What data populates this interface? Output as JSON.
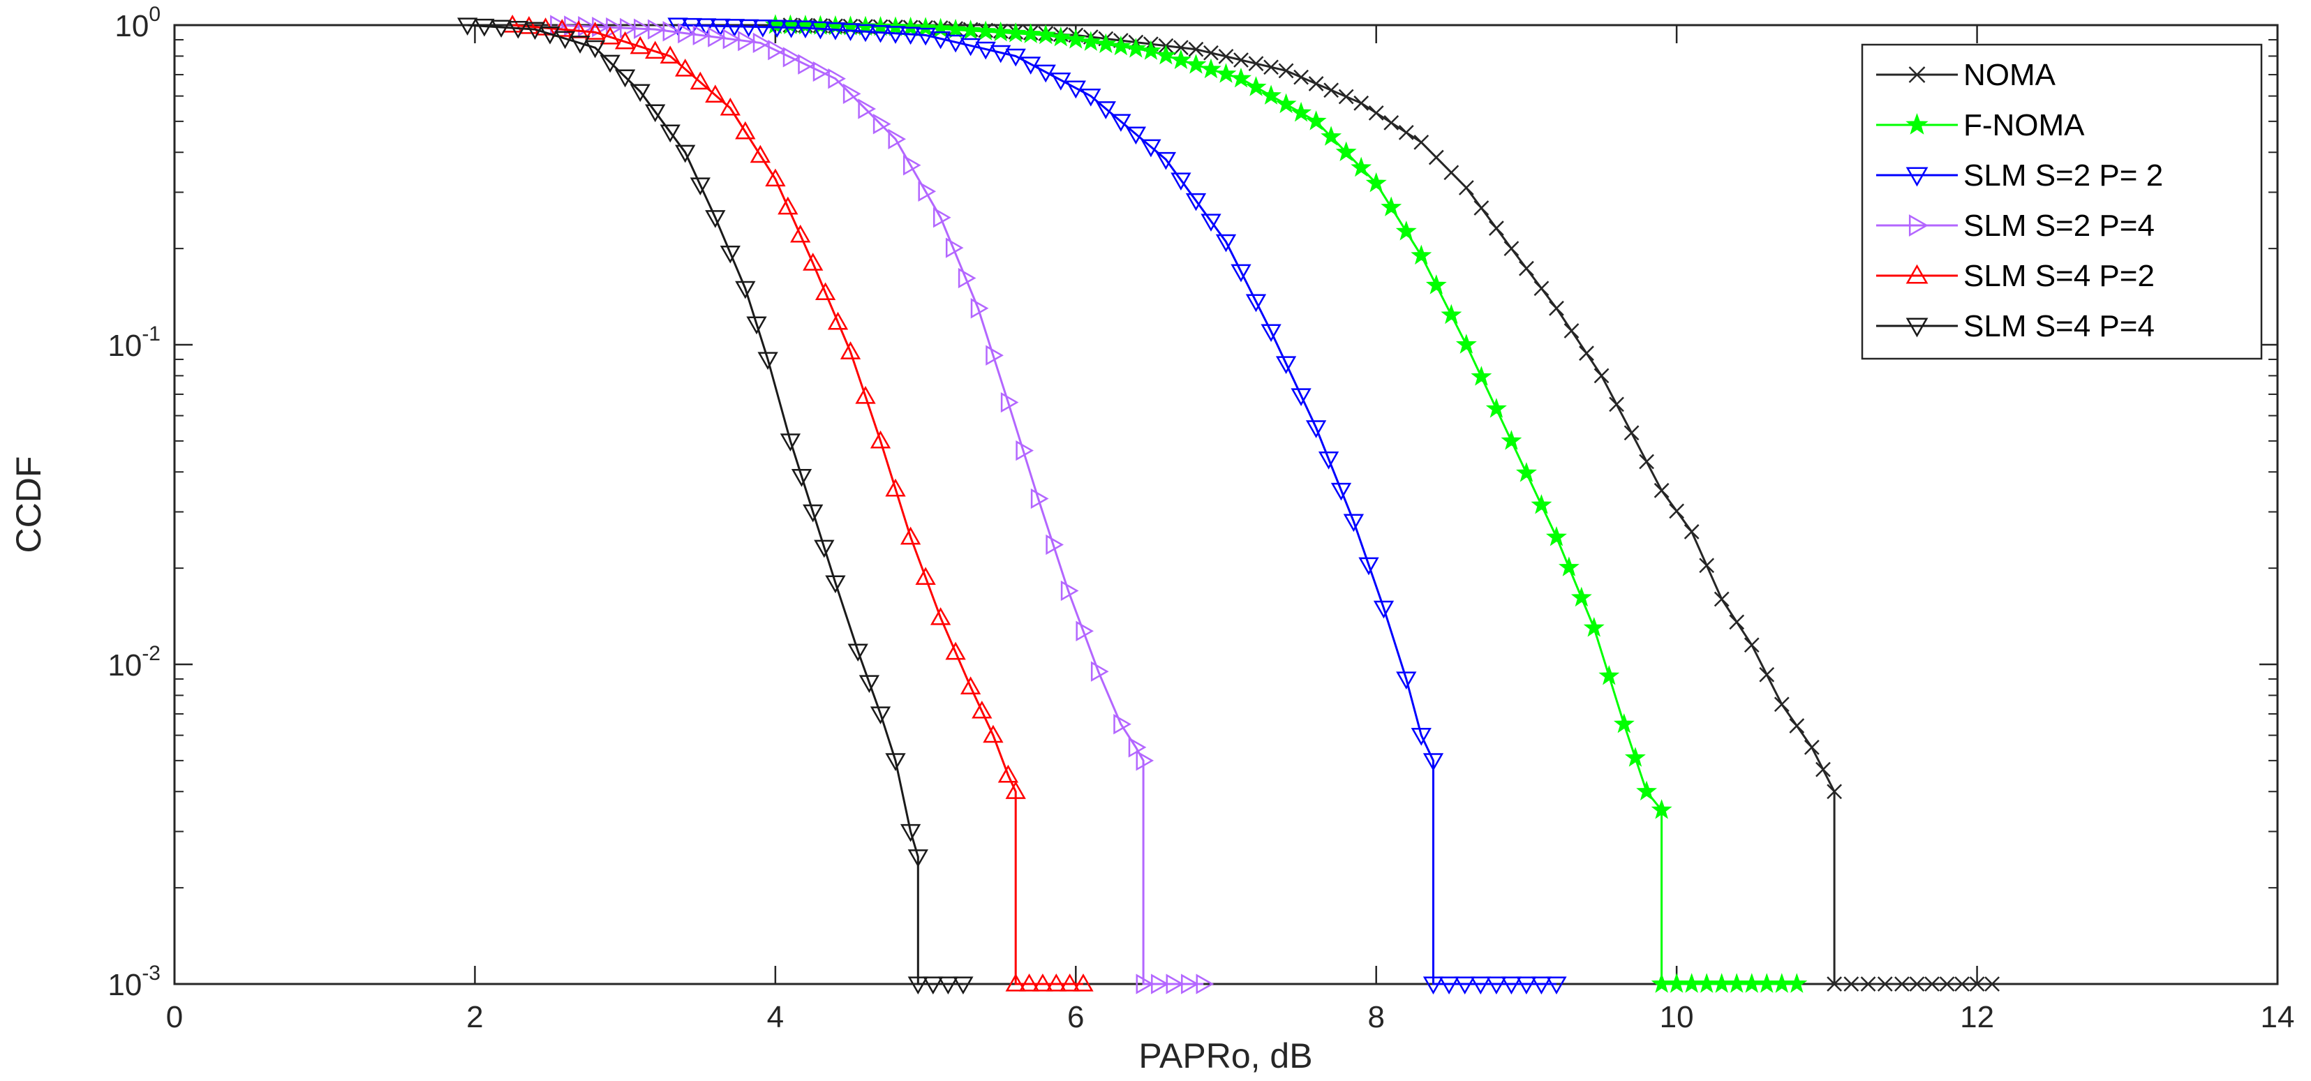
{
  "chart_data": {
    "type": "line",
    "title": "",
    "xlabel": "PAPRo, dB",
    "ylabel": "CCDF",
    "xlim": [
      0,
      14
    ],
    "ylim": [
      0.001,
      1
    ],
    "yscale": "log",
    "xticks": [
      0,
      2,
      4,
      6,
      8,
      10,
      12,
      14
    ],
    "xtick_labels": [
      "0",
      "2",
      "4",
      "6",
      "8",
      "10",
      "12",
      "14"
    ],
    "yticks": [
      1,
      0.1,
      0.01,
      0.001
    ],
    "ytick_labels": [
      {
        "base": "10",
        "exp": "0"
      },
      {
        "base": "10",
        "exp": "-1"
      },
      {
        "base": "10",
        "exp": "-2"
      },
      {
        "base": "10",
        "exp": "-3"
      }
    ],
    "grid": false,
    "legend_position": "top-right",
    "series": [
      {
        "name": "NOMA",
        "color": "#262626",
        "marker": "x",
        "x": [
          4.1,
          5.1,
          6.0,
          6.8,
          7.4,
          7.9,
          8.3,
          8.6,
          8.9,
          9.2,
          9.5,
          9.7,
          9.9,
          10.1,
          10.3,
          10.5,
          10.7,
          10.9,
          11.05,
          11.05,
          11.5,
          12.1
        ],
        "y": [
          1.0,
          0.98,
          0.93,
          0.84,
          0.72,
          0.57,
          0.43,
          0.31,
          0.2,
          0.13,
          0.08,
          0.053,
          0.035,
          0.026,
          0.016,
          0.0115,
          0.0075,
          0.0055,
          0.004,
          0.001,
          0.001,
          0.001
        ]
      },
      {
        "name": "F-NOMA",
        "color": "#00ff00",
        "marker": "star",
        "x": [
          4.0,
          5.0,
          5.8,
          6.5,
          7.1,
          7.6,
          8.0,
          8.3,
          8.6,
          8.9,
          9.2,
          9.45,
          9.65,
          9.8,
          9.9,
          9.9,
          10.4,
          10.8
        ],
        "y": [
          1.0,
          0.98,
          0.93,
          0.83,
          0.68,
          0.5,
          0.32,
          0.19,
          0.1,
          0.05,
          0.025,
          0.013,
          0.0065,
          0.004,
          0.0035,
          0.001,
          0.001,
          0.001
        ],
        "visible_markers": true
      },
      {
        "name": "SLM S=2 P= 2",
        "color": "#0000ff",
        "marker": "triangle-down",
        "x": [
          3.35,
          4.2,
          5.0,
          5.6,
          6.1,
          6.6,
          7.0,
          7.3,
          7.6,
          7.85,
          8.05,
          8.2,
          8.3,
          8.38,
          8.38,
          8.8,
          9.2
        ],
        "y": [
          1.0,
          0.98,
          0.93,
          0.8,
          0.6,
          0.38,
          0.21,
          0.11,
          0.055,
          0.028,
          0.015,
          0.009,
          0.006,
          0.005,
          0.001,
          0.001,
          0.001
        ]
      },
      {
        "name": "SLM S=2 P=4",
        "color": "#b366ff",
        "marker": "triangle-right",
        "x": [
          2.55,
          3.2,
          3.9,
          4.4,
          4.8,
          5.1,
          5.35,
          5.55,
          5.75,
          5.95,
          6.15,
          6.3,
          6.4,
          6.45,
          6.45,
          6.85
        ],
        "y": [
          1.0,
          0.97,
          0.88,
          0.68,
          0.44,
          0.25,
          0.13,
          0.066,
          0.033,
          0.017,
          0.0095,
          0.0065,
          0.0055,
          0.005,
          0.001,
          0.001
        ],
        "visible_markers": true
      },
      {
        "name": "SLM S=4 P=2",
        "color": "#ff0000",
        "marker": "triangle-up",
        "x": [
          2.25,
          2.8,
          3.3,
          3.7,
          4.0,
          4.25,
          4.5,
          4.7,
          4.9,
          5.1,
          5.3,
          5.45,
          5.55,
          5.6,
          5.6,
          6.05
        ],
        "y": [
          1.0,
          0.95,
          0.8,
          0.55,
          0.33,
          0.18,
          0.095,
          0.05,
          0.025,
          0.014,
          0.0085,
          0.006,
          0.0045,
          0.004,
          0.001,
          0.001
        ]
      },
      {
        "name": "SLM S=4 P=4",
        "color": "#1a1a1a",
        "marker": "triangle-down",
        "x": [
          1.95,
          2.4,
          2.8,
          3.1,
          3.4,
          3.6,
          3.8,
          3.95,
          4.1,
          4.25,
          4.4,
          4.55,
          4.7,
          4.8,
          4.9,
          4.95,
          4.95,
          5.25
        ],
        "y": [
          1.0,
          0.97,
          0.85,
          0.62,
          0.4,
          0.25,
          0.15,
          0.09,
          0.05,
          0.03,
          0.018,
          0.011,
          0.007,
          0.005,
          0.003,
          0.0025,
          0.001,
          0.001
        ]
      }
    ]
  }
}
